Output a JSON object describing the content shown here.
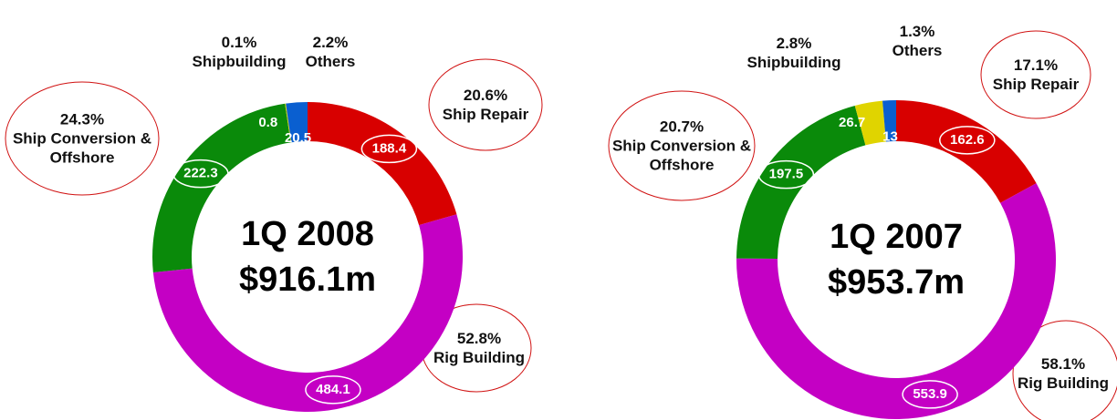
{
  "chart_data": [
    {
      "type": "donut",
      "title": "1Q 2008",
      "subtitle": "$916.1m",
      "categories": [
        "Ship Repair",
        "Rig Building",
        "Ship Conversion & Offshore",
        "Shipbuilding",
        "Others"
      ],
      "values": [
        188.4,
        484.1,
        222.3,
        0.8,
        20.5
      ],
      "percent_labels": [
        "20.6%",
        "52.8%",
        "24.3%",
        "0.1%",
        "2.2%"
      ],
      "colors": [
        "#d80000",
        "#c400c4",
        "#0a8a0a",
        "#e0d400",
        "#0a5fd0"
      ]
    },
    {
      "type": "donut",
      "title": "1Q 2007",
      "subtitle": "$953.7m",
      "categories": [
        "Ship Repair",
        "Rig Building",
        "Ship Conversion & Offshore",
        "Shipbuilding",
        "Others"
      ],
      "values": [
        162.6,
        553.9,
        197.5,
        26.7,
        13
      ],
      "percent_labels": [
        "17.1%",
        "58.1%",
        "20.7%",
        "2.8%",
        "1.3%"
      ],
      "colors": [
        "#d80000",
        "#c400c4",
        "#0a8a0a",
        "#e0d400",
        "#0a5fd0"
      ]
    }
  ]
}
